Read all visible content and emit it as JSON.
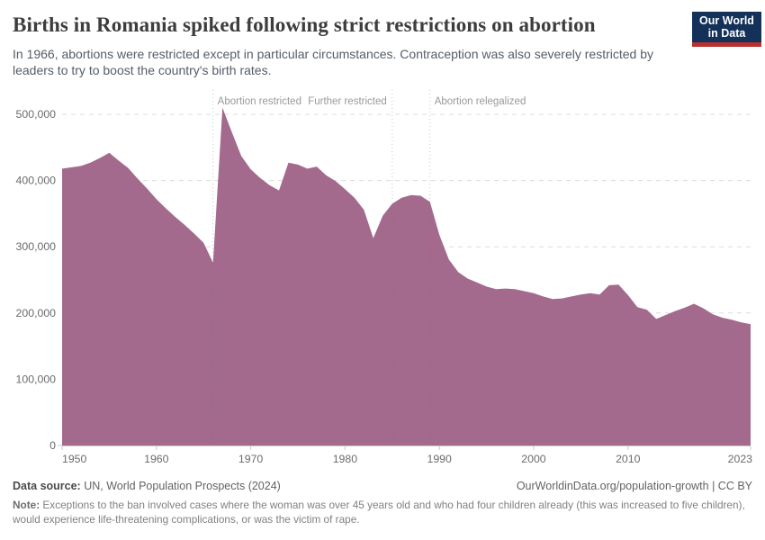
{
  "header": {
    "title": "Births in Romania spiked following strict restrictions on abortion",
    "subtitle": "In 1966, abortions were restricted except in particular circumstances. Contraception was also severely restricted by leaders to try to boost the country's birth rates."
  },
  "logo": {
    "line1": "Our World",
    "line2": "in Data"
  },
  "chart_data": {
    "type": "area",
    "title": "Births in Romania, 1950-2023",
    "xlabel": "",
    "ylabel": "",
    "x": [
      1950,
      1951,
      1952,
      1953,
      1954,
      1955,
      1956,
      1957,
      1958,
      1959,
      1960,
      1961,
      1962,
      1963,
      1964,
      1965,
      1966,
      1967,
      1968,
      1969,
      1970,
      1971,
      1972,
      1973,
      1974,
      1975,
      1976,
      1977,
      1978,
      1979,
      1980,
      1981,
      1982,
      1983,
      1984,
      1985,
      1986,
      1987,
      1988,
      1989,
      1990,
      1991,
      1992,
      1993,
      1994,
      1995,
      1996,
      1997,
      1998,
      1999,
      2000,
      2001,
      2002,
      2003,
      2004,
      2005,
      2006,
      2007,
      2008,
      2009,
      2010,
      2011,
      2012,
      2013,
      2014,
      2015,
      2016,
      2017,
      2018,
      2019,
      2020,
      2021,
      2022,
      2023
    ],
    "series": [
      {
        "name": "Births",
        "values": [
          418000,
          420000,
          422000,
          427000,
          434000,
          442000,
          430000,
          419000,
          403000,
          388000,
          372000,
          358000,
          345000,
          333000,
          320000,
          306000,
          276000,
          510000,
          473000,
          437000,
          417000,
          404000,
          393000,
          385000,
          427000,
          424000,
          418000,
          421000,
          408000,
          399000,
          387000,
          374000,
          356000,
          313000,
          347000,
          365000,
          374000,
          378000,
          377000,
          368000,
          318000,
          281000,
          262000,
          252000,
          246000,
          240000,
          236000,
          237000,
          236000,
          233000,
          230000,
          225000,
          221000,
          222000,
          225000,
          228000,
          230000,
          228000,
          242000,
          243000,
          227000,
          209000,
          205000,
          191000,
          197000,
          203000,
          208000,
          214000,
          207000,
          198000,
          193000,
          190000,
          186000,
          183000
        ]
      }
    ],
    "ylim": [
      0,
      500000
    ],
    "yticks": [
      0,
      100000,
      200000,
      300000,
      400000,
      500000
    ],
    "ytick_labels": [
      "0",
      "100,000",
      "200,000",
      "300,000",
      "400,000",
      "500,000"
    ],
    "xticks": [
      1950,
      1960,
      1970,
      1980,
      1990,
      2000,
      2010,
      2023
    ],
    "grid": "horizontal-dashed",
    "legend_position": "none",
    "area_color": "#a36a8d",
    "grid_color": "#dcdcdc",
    "axis_color": "#c9c9c9",
    "tick_label_color": "#6b6b6b",
    "annotation_color": "#999999",
    "annotations": [
      {
        "year": 1966,
        "label": "Abortion restricted",
        "side": "right"
      },
      {
        "year": 1985,
        "label": "Further restricted",
        "side": "left"
      },
      {
        "year": 1989,
        "label": "Abortion relegalized",
        "side": "right"
      }
    ]
  },
  "footer": {
    "source_label": "Data source:",
    "source_text": " UN, World Population Prospects (2024)",
    "link": "OurWorldinData.org/population-growth | CC BY",
    "note_label": "Note:",
    "note_text": " Exceptions to the ban involved cases where the woman was over 45 years old and who had four children already (this was increased to five children), would experience life-threatening complications, or was the victim of rape."
  }
}
